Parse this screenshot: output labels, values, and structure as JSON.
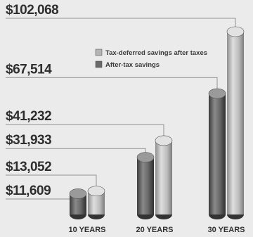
{
  "chart_data": {
    "type": "bar",
    "style": "cylinder",
    "title": "",
    "xlabel": "",
    "ylabel": "",
    "categories": [
      "10 YEARS",
      "20 YEARS",
      "30 YEARS"
    ],
    "series": [
      {
        "name": "After-tax savings",
        "color": "#6a6a6a",
        "values": [
          11609,
          31933,
          67514
        ],
        "labels": [
          "$11,609",
          "$31,933",
          "$67,514"
        ]
      },
      {
        "name": "Tax-deferred savings after taxes",
        "color": "#b4b4b4",
        "values": [
          13052,
          41232,
          102068
        ],
        "labels": [
          "$13,052",
          "$41,232",
          "$102,068"
        ]
      }
    ],
    "ylim": [
      0,
      102068
    ],
    "grid": false,
    "legend_position": "upper-middle",
    "data_labels_position": "left-with-leader-lines"
  }
}
